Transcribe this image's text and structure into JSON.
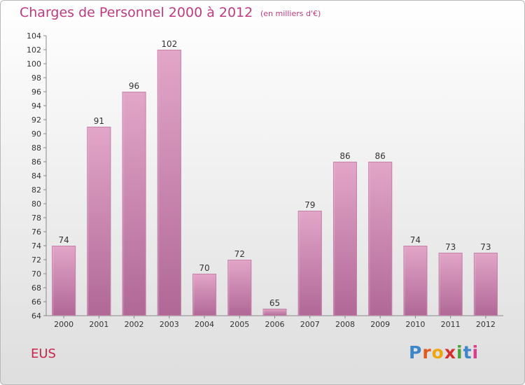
{
  "header": {
    "title": "Charges de Personnel 2000 à 2012",
    "unit_note": "(en milliers d'€)"
  },
  "footer": {
    "commune": "EUS",
    "brand_letters": [
      "P",
      "r",
      "o",
      "x",
      "i",
      "t",
      "i"
    ],
    "brand_colors": [
      "#3f86c9",
      "#e05a1e",
      "#f0a410",
      "#d42f2f",
      "#4aa23c",
      "#3f86c9",
      "#e03a8a"
    ]
  },
  "chart_data": {
    "type": "bar",
    "categories": [
      "2000",
      "2001",
      "2002",
      "2003",
      "2004",
      "2005",
      "2006",
      "2007",
      "2008",
      "2009",
      "2010",
      "2011",
      "2012"
    ],
    "values": [
      74,
      91,
      96,
      102,
      70,
      72,
      65,
      79,
      86,
      86,
      74,
      73,
      73
    ],
    "ylim": [
      64,
      104
    ],
    "yticks": [
      64,
      66,
      68,
      70,
      72,
      74,
      76,
      78,
      80,
      82,
      84,
      86,
      88,
      90,
      92,
      94,
      96,
      98,
      100,
      102,
      104
    ],
    "grid": false,
    "bar_color": "#d98bb6"
  }
}
